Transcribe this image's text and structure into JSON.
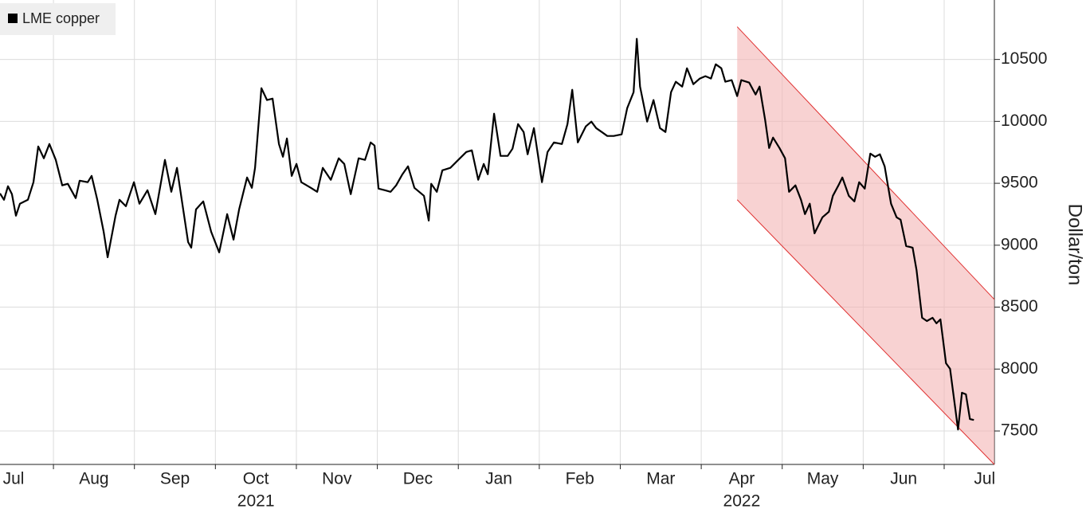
{
  "chart_data": {
    "type": "line",
    "legend_position": "upper left",
    "ylabel": "Dollar/ton",
    "x": [
      0.34,
      0.389,
      0.438,
      0.488,
      0.537,
      0.586,
      0.684,
      0.753,
      0.812,
      0.881,
      0.95,
      1.029,
      1.108,
      1.177,
      1.275,
      1.324,
      1.423,
      1.472,
      1.541,
      1.62,
      1.669,
      1.767,
      1.816,
      1.895,
      1.994,
      2.062,
      2.161,
      2.259,
      2.377,
      2.456,
      2.525,
      2.584,
      2.663,
      2.702,
      2.761,
      2.85,
      2.948,
      3.047,
      3.145,
      3.224,
      3.293,
      3.391,
      3.45,
      3.49,
      3.568,
      3.637,
      3.706,
      3.785,
      3.834,
      3.883,
      3.942,
      4.001,
      4.06,
      4.179,
      4.257,
      4.326,
      4.425,
      4.523,
      4.592,
      4.671,
      4.769,
      4.848,
      4.917,
      4.966,
      5.015,
      5.094,
      5.163,
      5.232,
      5.31,
      5.379,
      5.458,
      5.576,
      5.635,
      5.665,
      5.734,
      5.803,
      5.901,
      6.0,
      6.098,
      6.167,
      6.246,
      6.314,
      6.364,
      6.442,
      6.521,
      6.61,
      6.669,
      6.738,
      6.807,
      6.856,
      6.934,
      7.033,
      7.102,
      7.181,
      7.279,
      7.348,
      7.407,
      7.476,
      7.574,
      7.643,
      7.702,
      7.771,
      7.84,
      7.919,
      8.017,
      8.086,
      8.165,
      8.204,
      8.244,
      8.332,
      8.411,
      8.49,
      8.558,
      8.627,
      8.686,
      8.765,
      8.824,
      8.903,
      8.982,
      9.051,
      9.12,
      9.179,
      9.248,
      9.297,
      9.376,
      9.444,
      9.494,
      9.592,
      9.671,
      9.72,
      9.789,
      9.838,
      9.887,
      9.966,
      10.035,
      10.084,
      10.163,
      10.232,
      10.281,
      10.34,
      10.399,
      10.497,
      10.576,
      10.625,
      10.694,
      10.743,
      10.822,
      10.891,
      10.95,
      11.019,
      11.088,
      11.147,
      11.206,
      11.265,
      11.344,
      11.413,
      11.462,
      11.531,
      11.61,
      11.659,
      11.728,
      11.787,
      11.856,
      11.905,
      11.954,
      12.023,
      12.073,
      12.171,
      12.22,
      12.269,
      12.318,
      12.367
    ],
    "series": [
      {
        "name": "LME copper",
        "color": "#000000",
        "values": [
          9418,
          9367,
          9476,
          9412,
          9238,
          9335,
          9367,
          9509,
          9798,
          9702,
          9817,
          9689,
          9483,
          9496,
          9380,
          9521,
          9509,
          9560,
          9367,
          9109,
          8903,
          9238,
          9367,
          9315,
          9509,
          9335,
          9444,
          9251,
          9689,
          9431,
          9625,
          9367,
          9025,
          8980,
          9289,
          9354,
          9109,
          8942,
          9251,
          9045,
          9289,
          9547,
          9463,
          9625,
          10268,
          10172,
          10184,
          9817,
          9714,
          9862,
          9560,
          9656,
          9509,
          9463,
          9431,
          9625,
          9528,
          9702,
          9656,
          9412,
          9702,
          9689,
          9830,
          9805,
          9457,
          9444,
          9431,
          9483,
          9573,
          9637,
          9463,
          9399,
          9199,
          9496,
          9431,
          9605,
          9625,
          9689,
          9753,
          9766,
          9528,
          9656,
          9573,
          10062,
          9721,
          9721,
          9779,
          9978,
          9914,
          9734,
          9946,
          9509,
          9753,
          9830,
          9817,
          9978,
          10255,
          9830,
          9959,
          9998,
          9946,
          9914,
          9882,
          9882,
          9895,
          10107,
          10236,
          10667,
          10281,
          9998,
          10172,
          9946,
          9914,
          10236,
          10320,
          10281,
          10429,
          10300,
          10346,
          10365,
          10346,
          10461,
          10429,
          10320,
          10333,
          10204,
          10333,
          10313,
          10217,
          10281,
          10011,
          9785,
          9869,
          9785,
          9702,
          9431,
          9483,
          9367,
          9251,
          9335,
          9096,
          9225,
          9270,
          9399,
          9483,
          9547,
          9399,
          9354,
          9509,
          9457,
          9740,
          9714,
          9734,
          9637,
          9335,
          9225,
          9206,
          8993,
          8980,
          8800,
          8414,
          8388,
          8414,
          8369,
          8401,
          8047,
          8002,
          7512,
          7809,
          7796,
          7596,
          7589
        ]
      }
    ],
    "channel": {
      "x": [
        9.444,
        12.62
      ],
      "upper": [
        10764,
        8562
      ],
      "lower": [
        9367,
        7229
      ],
      "color": "#f4b4b4",
      "edge_color": "#e03030"
    },
    "xlim": [
      0.34,
      12.62
    ],
    "xticks": [
      {
        "value": 0.5,
        "label": "Jul"
      },
      {
        "value": 1.5,
        "label": "Aug"
      },
      {
        "value": 2.5,
        "label": "Sep"
      },
      {
        "value": 3.5,
        "label": "Oct"
      },
      {
        "value": 4.5,
        "label": "Nov"
      },
      {
        "value": 5.5,
        "label": "Dec"
      },
      {
        "value": 6.5,
        "label": "Jan"
      },
      {
        "value": 7.5,
        "label": "Feb"
      },
      {
        "value": 8.5,
        "label": "Mar"
      },
      {
        "value": 9.5,
        "label": "Apr"
      },
      {
        "value": 10.5,
        "label": "May"
      },
      {
        "value": 11.5,
        "label": "Jun"
      },
      {
        "value": 12.5,
        "label": "Jul"
      }
    ],
    "year_labels": [
      {
        "value": 3.5,
        "label": "2021"
      },
      {
        "value": 9.5,
        "label": "2022"
      }
    ],
    "ylim": [
      7230,
      10980
    ],
    "yticks": [
      7500,
      8000,
      8500,
      9000,
      9500,
      10000,
      10500
    ],
    "grid": true
  }
}
